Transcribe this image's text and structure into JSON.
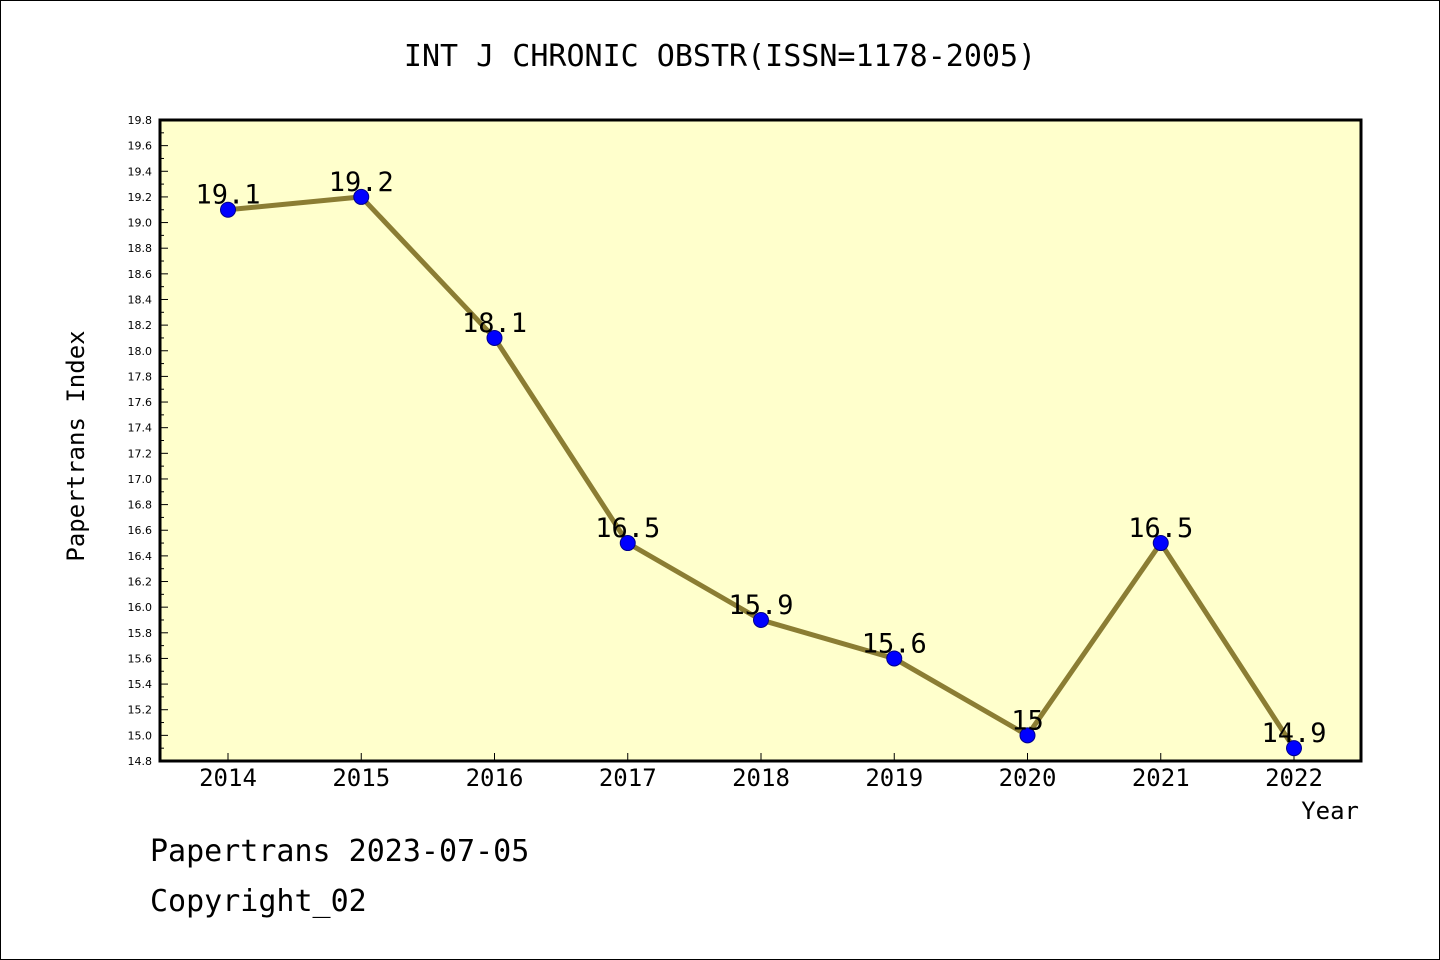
{
  "footer": {
    "line1": "Papertrans 2023-07-05",
    "line2": "Copyright_02"
  },
  "colors": {
    "plot_background": "#ffffcc",
    "line": "#8b7d33",
    "marker": "#0000ff",
    "marker_edge": "#00008b"
  },
  "chart_data": {
    "type": "line",
    "title": "INT J CHRONIC OBSTR(ISSN=1178-2005)",
    "xlabel": "Year",
    "ylabel": "Papertrans Index",
    "ylim": [
      14.8,
      19.8
    ],
    "grid": false,
    "categories": [
      "2014",
      "2015",
      "2016",
      "2017",
      "2018",
      "2019",
      "2020",
      "2021",
      "2022"
    ],
    "series": [
      {
        "values": [
          19.1,
          19.2,
          18.1,
          16.5,
          15.9,
          15.6,
          15.0,
          16.5,
          14.9
        ],
        "labels": [
          "19.1",
          "19.2",
          "18.1",
          "16.5",
          "15.9",
          "15.6",
          "15",
          "16.5",
          "14.9"
        ]
      }
    ],
    "yticks": [
      "14.8",
      "15.0",
      "15.2",
      "15.4",
      "15.6",
      "15.8",
      "16.0",
      "16.2",
      "16.4",
      "16.6",
      "16.8",
      "17.0",
      "17.2",
      "17.4",
      "17.6",
      "17.8",
      "18.0",
      "18.2",
      "18.4",
      "18.6",
      "18.8",
      "19.0",
      "19.2",
      "19.4",
      "19.6",
      "19.8"
    ]
  }
}
